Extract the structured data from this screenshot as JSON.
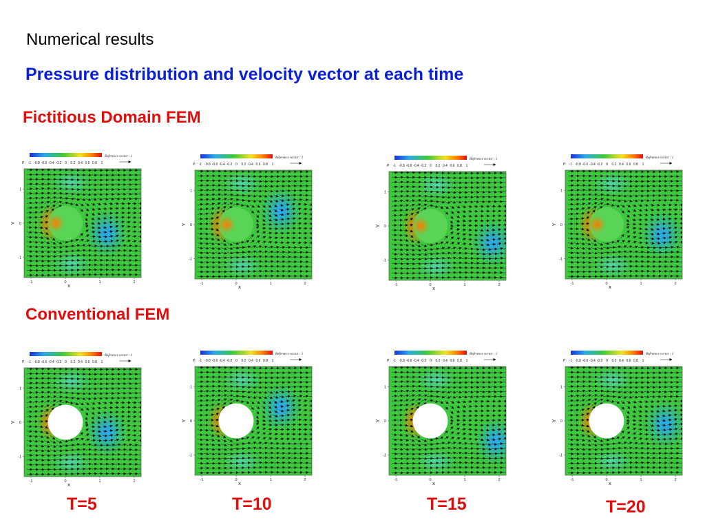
{
  "slide": {
    "heading": "Numerical results",
    "subtitle": "Pressure distribution and velocity vector at each time"
  },
  "sections": [
    {
      "title": "Fictitious Domain FEM",
      "cylinder_style": "filled",
      "panels": [
        {
          "time": "T=5",
          "vortex": [
            1.2,
            -0.3
          ]
        },
        {
          "time": "T=10",
          "vortex": [
            1.3,
            0.4
          ]
        },
        {
          "time": "T=15",
          "vortex": [
            1.8,
            -0.5
          ]
        },
        {
          "time": "T=20",
          "vortex": [
            1.6,
            -0.3
          ]
        }
      ]
    },
    {
      "title": "Conventional FEM",
      "cylinder_style": "hole",
      "panels": [
        {
          "time": "T=5",
          "vortex": [
            1.2,
            -0.3
          ]
        },
        {
          "time": "T=10",
          "vortex": [
            1.3,
            0.4
          ]
        },
        {
          "time": "T=15",
          "vortex": [
            1.9,
            -0.6
          ]
        },
        {
          "time": "T=20",
          "vortex": [
            1.7,
            -0.1
          ]
        }
      ]
    }
  ],
  "time_labels": [
    "T=5",
    "T=10",
    "T=15",
    "T=20"
  ],
  "plot": {
    "colorbar_label": "P:",
    "colorbar_ticks": [
      "-1",
      "-0.8",
      "-0.6",
      "-0.4",
      "-0.2",
      "0",
      "0.2",
      "0.4",
      "0.6",
      "0.8",
      "1"
    ],
    "reference_vector_label": "Reference vector : 1",
    "x_label": "x",
    "y_label": "Y",
    "x_ticks": [
      -1,
      0,
      1,
      2
    ],
    "y_ticks": [
      -1,
      0,
      1
    ],
    "x_range": [
      -1.2,
      2.2
    ],
    "y_range": [
      -1.6,
      1.6
    ],
    "cylinder_center": [
      0,
      0
    ],
    "cylinder_radius": 0.5
  },
  "colors": {
    "heading": "#000000",
    "subtitle": "#0a1fd8",
    "section_title": "#e00d0d",
    "time_label": "#e00d0d",
    "field_base": "#3ec83e",
    "field_stagnation": "#ff7a00",
    "field_suction": "#2aa9e8",
    "vector": "#111111"
  }
}
